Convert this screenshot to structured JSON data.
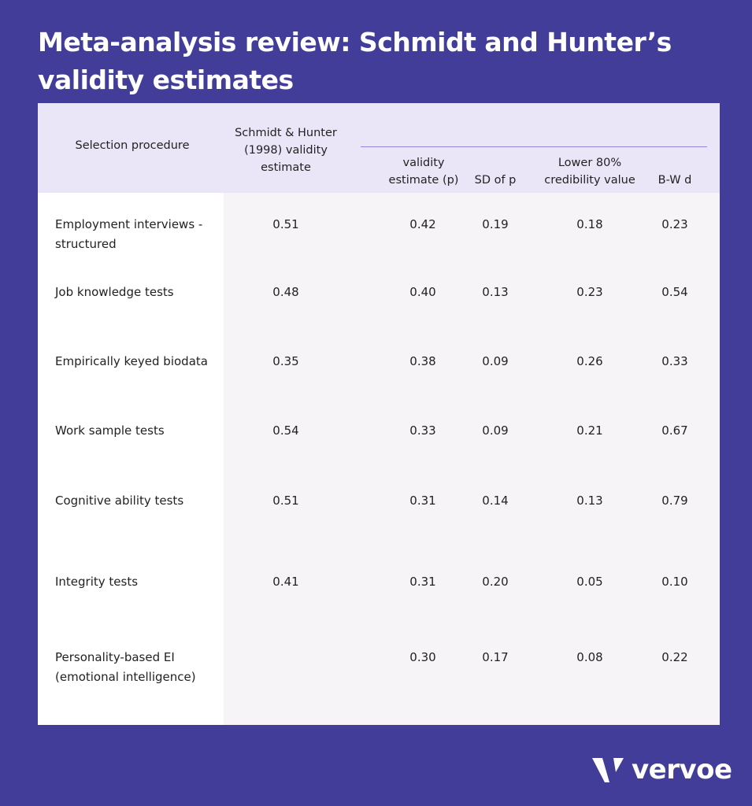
{
  "title": "Meta-analysis review: Schmidt and Hunter’s validity estimates",
  "headers": [
    "Selection procedure",
    "Schmidt & Hunter (1998) validity estimate",
    "validity estimate (p)",
    "SD of p",
    "Lower 80% credibility value",
    "B-W d"
  ],
  "rows": [
    {
      "label": "Employment interviews - structured",
      "sh": "0.51",
      "v": "0.42",
      "sd": "0.19",
      "low": "0.18",
      "bw": "0.23"
    },
    {
      "label": "Job knowledge tests",
      "sh": "0.48",
      "v": "0.40",
      "sd": "0.13",
      "low": "0.23",
      "bw": "0.54"
    },
    {
      "label": "Empirically keyed biodata",
      "sh": "0.35",
      "v": "0.38",
      "sd": "0.09",
      "low": "0.26",
      "bw": "0.33"
    },
    {
      "label": "Work sample tests",
      "sh": "0.54",
      "v": "0.33",
      "sd": "0.09",
      "low": "0.21",
      "bw": "0.67"
    },
    {
      "label": "Cognitive ability tests",
      "sh": "0.51",
      "v": "0.31",
      "sd": "0.14",
      "low": "0.13",
      "bw": "0.79"
    },
    {
      "label": "Integrity tests",
      "sh": "0.41",
      "v": "0.31",
      "sd": "0.20",
      "low": "0.05",
      "bw": "0.10"
    },
    {
      "label": "Personality-based EI (emotional intelligence)",
      "sh": "",
      "v": "0.30",
      "sd": "0.17",
      "low": "0.08",
      "bw": "0.22"
    }
  ],
  "logo": {
    "text": "vervoe"
  },
  "colors": {
    "background": "#413d98",
    "header": "#eae6f8"
  }
}
